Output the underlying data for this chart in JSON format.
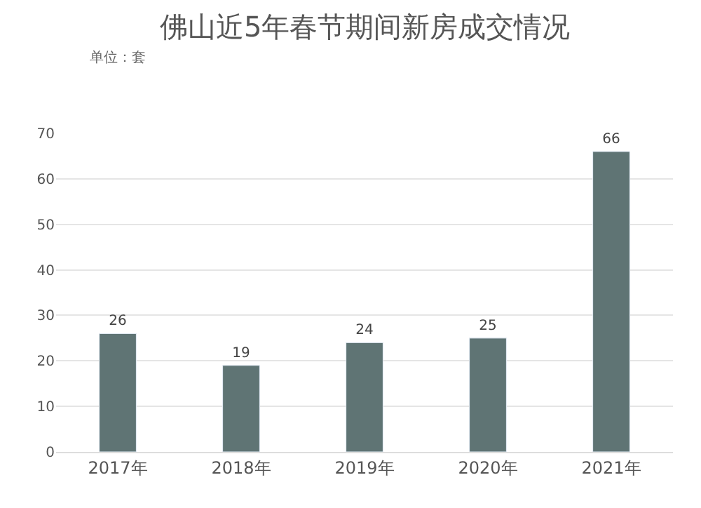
{
  "chart_data": {
    "type": "bar",
    "title": "佛山近5年春节期间新房成交情况",
    "subtitle": "单位：套",
    "categories": [
      "2017年",
      "2018年",
      "2019年",
      "2020年",
      "2021年"
    ],
    "values": [
      26,
      19,
      24,
      25,
      66
    ],
    "color": "#5f7474",
    "data_labels": true,
    "ylim": [
      0,
      70
    ],
    "yticks": [
      0,
      10,
      20,
      30,
      40,
      50,
      60,
      70
    ],
    "grid": "y",
    "legend": false
  }
}
